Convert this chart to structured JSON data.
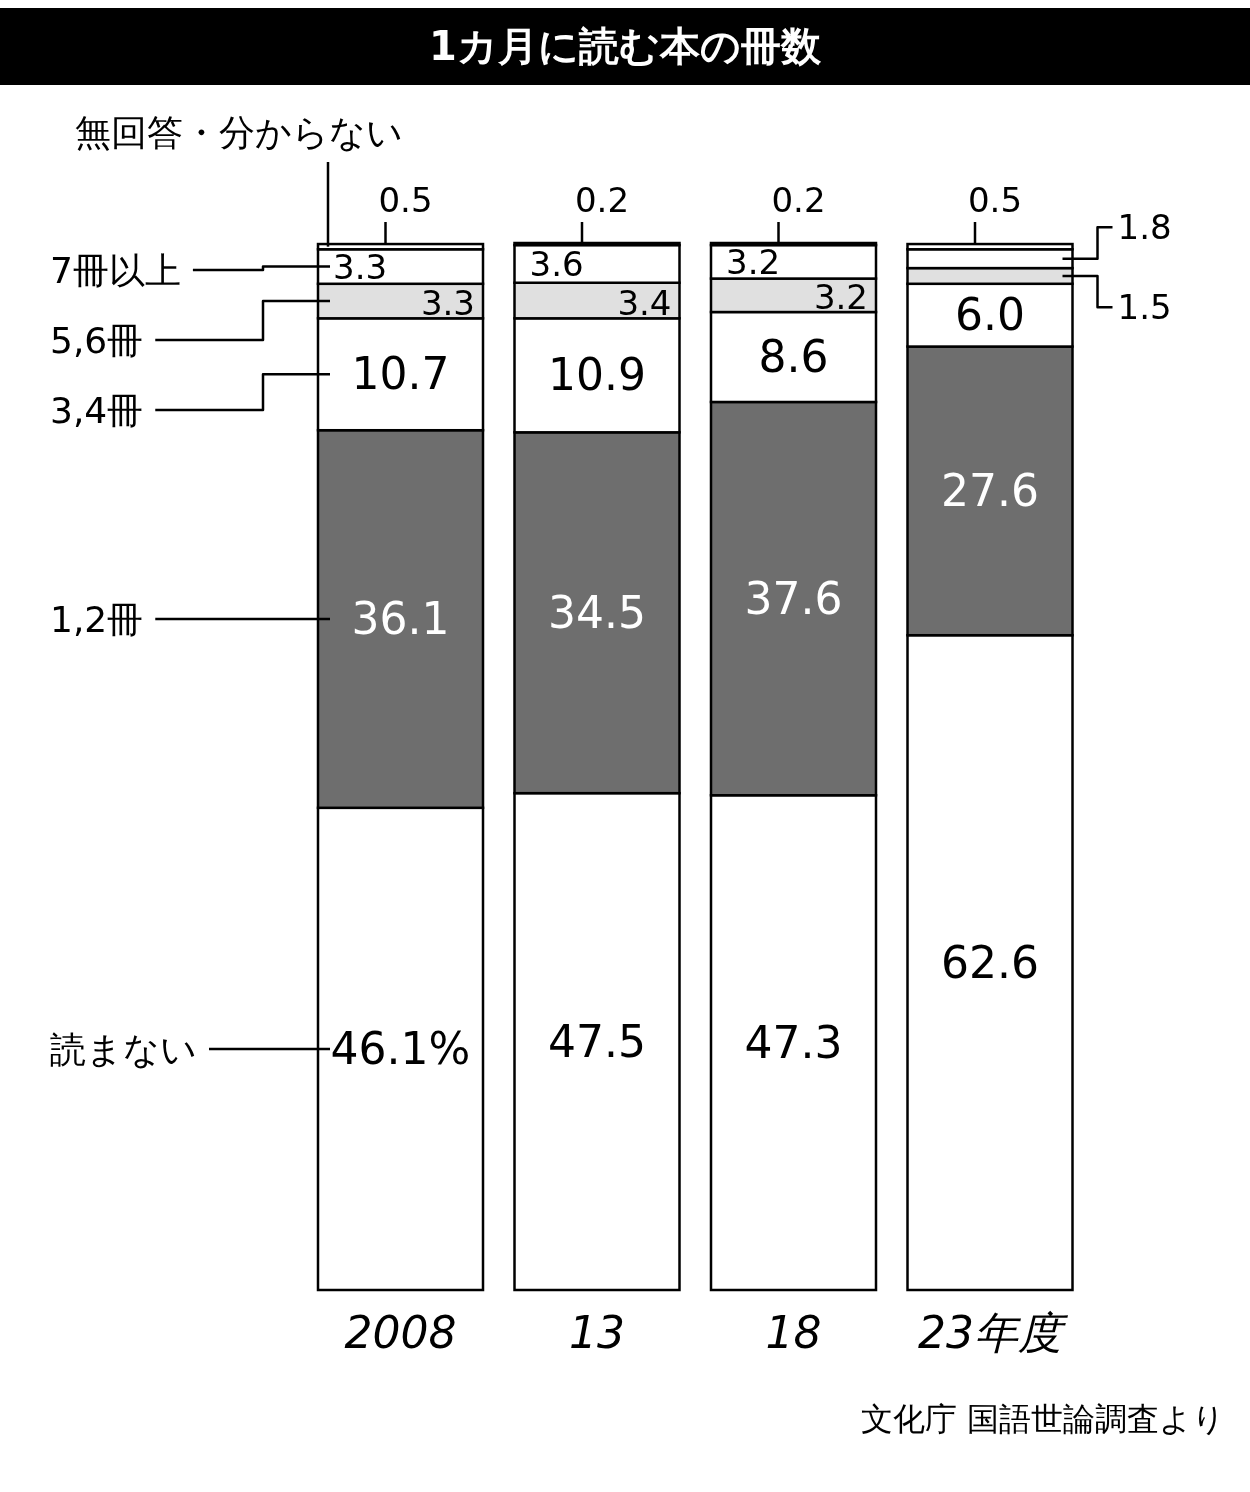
{
  "chart_data": {
    "type": "bar",
    "stacked": true,
    "title": "1カ月に読む本の冊数",
    "categories": [
      "2008",
      "13",
      "18",
      "23年度"
    ],
    "legend": "left",
    "annotations": [
      "文化庁 国語世論調査より"
    ],
    "series": [
      {
        "name": "読まない",
        "color": "#ffffff",
        "values": [
          46.1,
          47.5,
          47.3,
          62.6
        ],
        "value_labels": [
          "46.1%",
          "47.5",
          "47.3",
          "62.6"
        ]
      },
      {
        "name": "1,2冊",
        "color": "#6e6e6e",
        "values": [
          36.1,
          34.5,
          37.6,
          27.6
        ],
        "value_labels": [
          "36.1",
          "34.5",
          "37.6",
          "27.6"
        ]
      },
      {
        "name": "3,4冊",
        "color": "#ffffff",
        "values": [
          10.7,
          10.9,
          8.6,
          6.0
        ],
        "value_labels": [
          "10.7",
          "10.9",
          "8.6",
          "6.0"
        ]
      },
      {
        "name": "5,6冊",
        "color": "#e0e0e0",
        "values": [
          3.3,
          3.4,
          3.2,
          1.5
        ],
        "value_labels": [
          "3.3",
          "3.4",
          "3.2",
          "1.5"
        ]
      },
      {
        "name": "7冊以上",
        "color": "#ffffff",
        "values": [
          3.3,
          3.6,
          3.2,
          1.8
        ],
        "value_labels": [
          "3.3",
          "3.6",
          "3.2",
          "1.8"
        ]
      },
      {
        "name": "無回答・分からない",
        "color": "#ffffff",
        "values": [
          0.5,
          0.2,
          0.2,
          0.5
        ],
        "value_labels": [
          "0.5",
          "0.2",
          "0.2",
          "0.5"
        ]
      }
    ]
  }
}
